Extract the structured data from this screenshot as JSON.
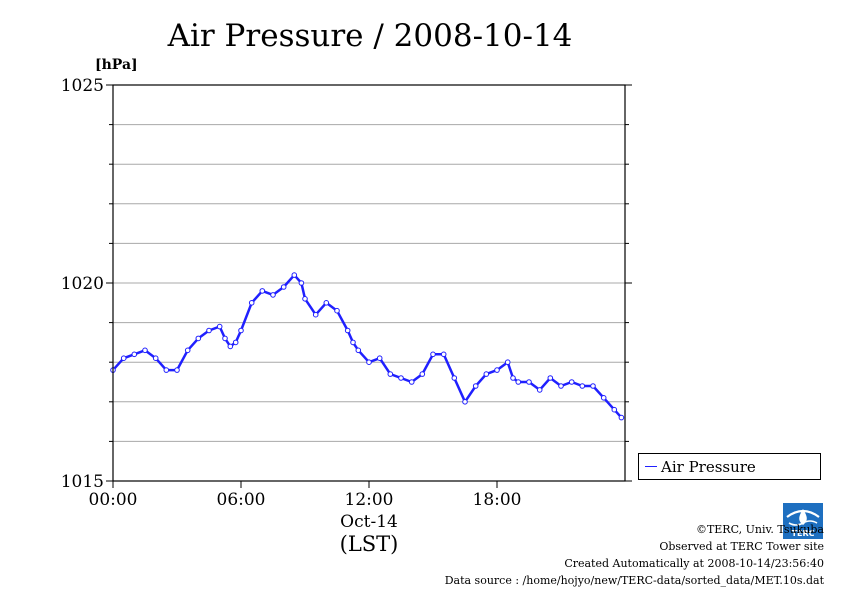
{
  "chart_data": {
    "type": "line",
    "title": "Air Pressure / 2008-10-14",
    "y_unit": "[hPa]",
    "ylim": [
      1015,
      1025
    ],
    "y_ticks": [
      1015,
      1020,
      1025
    ],
    "y_minor_step": 1,
    "xlim": [
      "2008-10-14 00:00",
      "2008-10-15 00:00"
    ],
    "x_ticks": [
      "00:00",
      "06:00",
      "12:00",
      "18:00"
    ],
    "x_date_label": "Oct-14",
    "x_axis_label": "(LST)",
    "grid": true,
    "legend_position": "right",
    "series": [
      {
        "name": "Air Pressure",
        "color": "#2020ff",
        "x": [
          "00:00",
          "00:30",
          "01:00",
          "01:30",
          "02:00",
          "02:30",
          "03:00",
          "03:30",
          "04:00",
          "04:30",
          "05:00",
          "05:15",
          "05:30",
          "05:45",
          "06:00",
          "06:30",
          "07:00",
          "07:30",
          "08:00",
          "08:30",
          "08:50",
          "09:00",
          "09:30",
          "10:00",
          "10:30",
          "11:00",
          "11:15",
          "11:30",
          "12:00",
          "12:30",
          "13:00",
          "13:30",
          "14:00",
          "14:30",
          "15:00",
          "15:30",
          "16:00",
          "16:30",
          "17:00",
          "17:30",
          "18:00",
          "18:30",
          "18:45",
          "19:00",
          "19:30",
          "20:00",
          "20:30",
          "21:00",
          "21:30",
          "22:00",
          "22:30",
          "23:00",
          "23:30",
          "23:50"
        ],
        "y": [
          1017.8,
          1018.1,
          1018.2,
          1018.3,
          1018.1,
          1017.8,
          1017.8,
          1018.3,
          1018.6,
          1018.8,
          1018.9,
          1018.6,
          1018.4,
          1018.5,
          1018.8,
          1019.5,
          1019.8,
          1019.7,
          1019.9,
          1020.2,
          1020.0,
          1019.6,
          1019.2,
          1019.5,
          1019.3,
          1018.8,
          1018.5,
          1018.3,
          1018.0,
          1018.1,
          1017.7,
          1017.6,
          1017.5,
          1017.7,
          1018.2,
          1018.2,
          1017.6,
          1017.0,
          1017.4,
          1017.7,
          1017.8,
          1018.0,
          1017.6,
          1017.5,
          1017.5,
          1017.3,
          1017.6,
          1017.4,
          1017.5,
          1017.4,
          1017.4,
          1017.1,
          1016.8,
          1016.6
        ]
      }
    ]
  },
  "credits": {
    "copyright": "©TERC, Univ. Tsukuba",
    "observed": "Observed at TERC Tower site",
    "created": "Created Automatically at 2008-10-14/23:56:40",
    "source": "Data source : /home/hojyo/new/TERC-data/sorted_data/MET.10s.dat",
    "logo_text": "TERC"
  }
}
